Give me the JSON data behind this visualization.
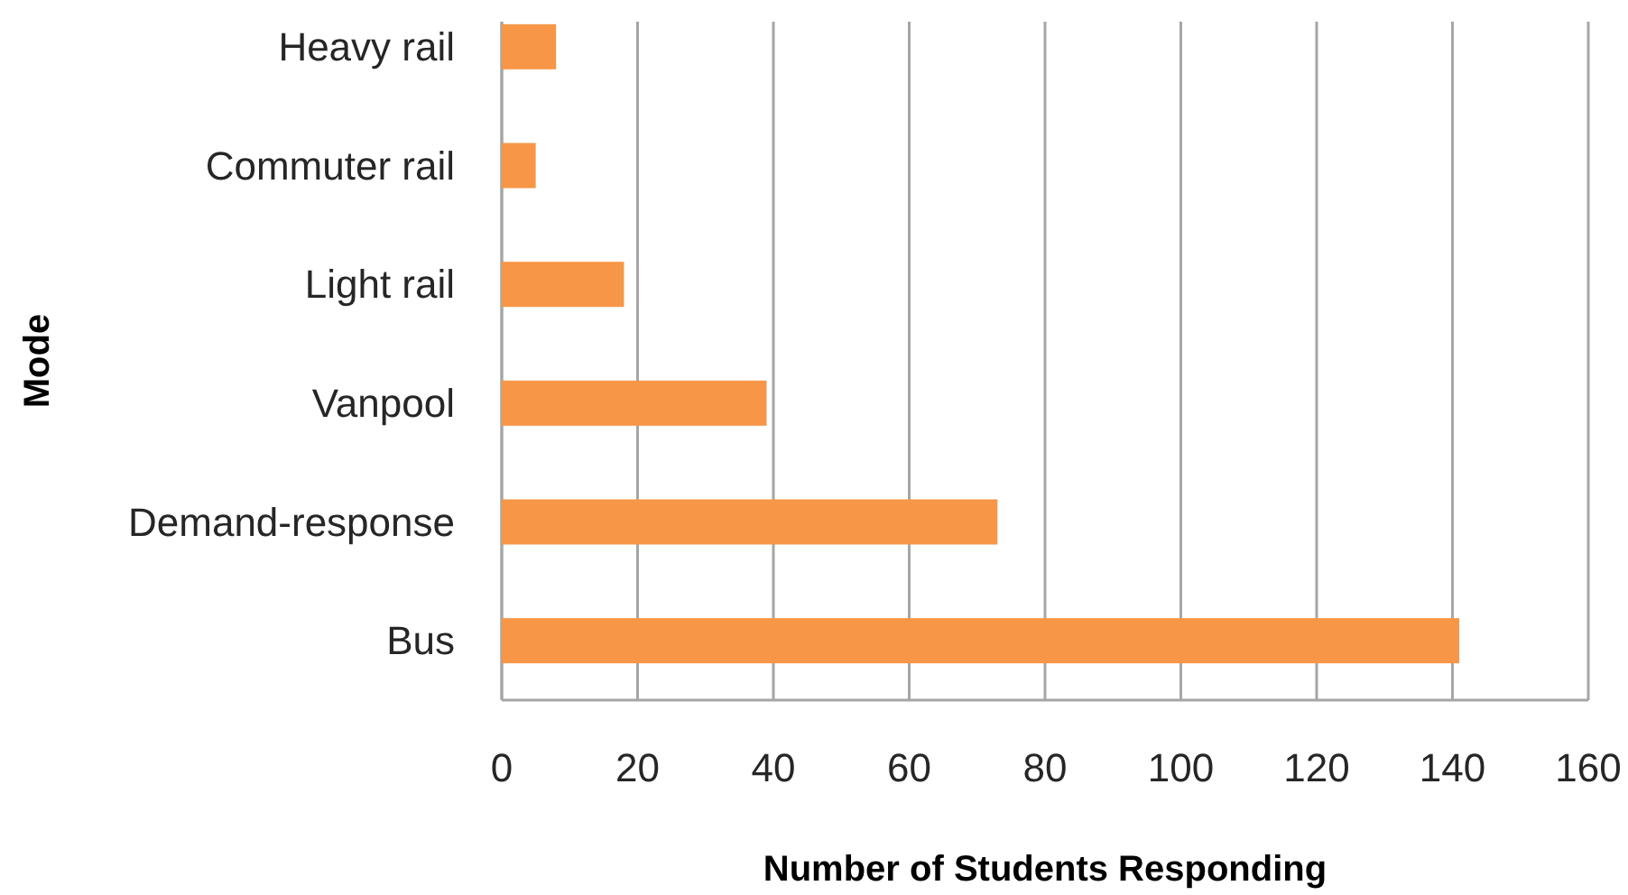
{
  "chart_data": {
    "type": "bar",
    "orientation": "horizontal",
    "categories": [
      "Heavy rail",
      "Commuter rail",
      "Light rail",
      "Vanpool",
      "Demand-response",
      "Bus"
    ],
    "values": [
      8,
      5,
      18,
      39,
      73,
      141
    ],
    "color": "#f79646",
    "xlim": [
      0,
      160
    ],
    "xticks": [
      0,
      20,
      40,
      60,
      80,
      100,
      120,
      140,
      160
    ],
    "xlabel": "Number of Students Responding",
    "ylabel": "Mode",
    "grid": "x"
  }
}
